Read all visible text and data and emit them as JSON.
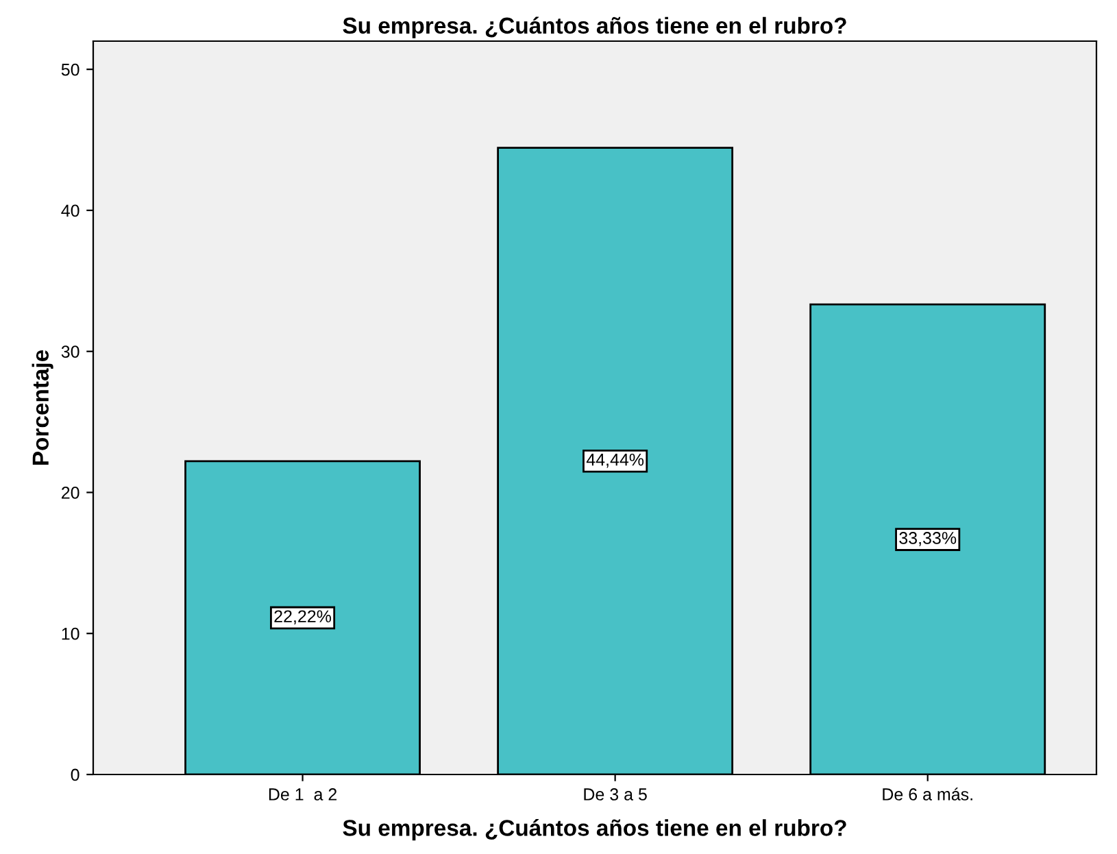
{
  "chart_data": {
    "type": "bar",
    "title": "Su empresa. ¿Cuántos años tiene en el rubro?",
    "xlabel": "Su empresa. ¿Cuántos años tiene en el rubro?",
    "ylabel": "Porcentaje",
    "categories": [
      "De 1  a 2",
      "De 3 a 5",
      "De 6 a más."
    ],
    "values": [
      22.22,
      44.44,
      33.33
    ],
    "value_labels": [
      "22,22%",
      "44,44%",
      "33,33%"
    ],
    "color": "#48c1c6",
    "ylim": [
      0,
      52
    ],
    "yticks": [
      0,
      10,
      20,
      30,
      40,
      50
    ],
    "grid": false,
    "legend": false
  }
}
